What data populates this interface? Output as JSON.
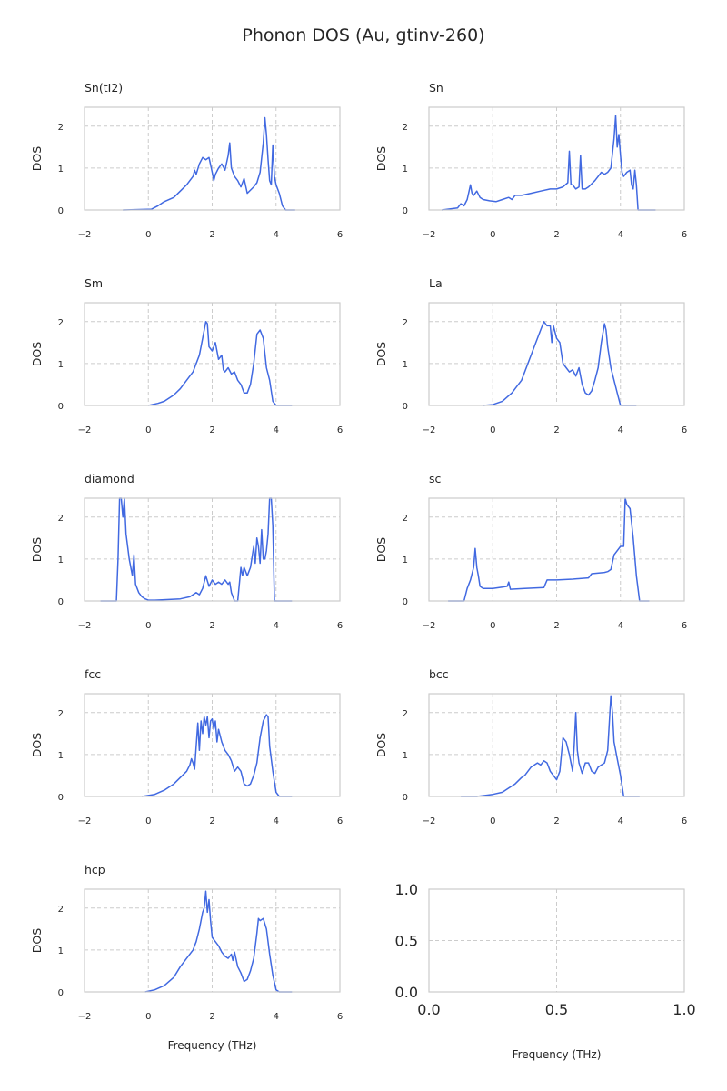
{
  "figure": {
    "title": "Phonon DOS (Au, gtinv-260)"
  },
  "style": {
    "line_color": "#4169e1",
    "grid_color": "#cccccc"
  },
  "chart_data": [
    {
      "type": "line",
      "title": "Sn(tI2)",
      "xlabel": "",
      "ylabel": "DOS",
      "xlim": [
        -2,
        6
      ],
      "ylim": [
        0,
        2.45
      ],
      "xticks": [
        "−2",
        "0",
        "2",
        "4",
        "6"
      ],
      "yticks": [
        "0",
        "1",
        "2"
      ],
      "grid": true,
      "series": [
        {
          "x": [
            -0.8,
            0.1,
            0.3,
            0.5,
            0.8,
            1.0,
            1.2,
            1.4,
            1.45,
            1.5,
            1.6,
            1.7,
            1.8,
            1.9,
            2.0,
            2.05,
            2.1,
            2.2,
            2.3,
            2.4,
            2.5,
            2.55,
            2.6,
            2.7,
            2.8,
            2.9,
            3.0,
            3.1,
            3.3,
            3.4,
            3.5,
            3.6,
            3.65,
            3.7,
            3.75,
            3.8,
            3.85,
            3.9,
            3.95,
            4.0,
            4.1,
            4.2,
            4.3,
            4.6
          ],
          "y": [
            0,
            0.02,
            0.1,
            0.2,
            0.3,
            0.45,
            0.6,
            0.8,
            0.95,
            0.85,
            1.1,
            1.25,
            1.2,
            1.25,
            0.9,
            0.7,
            0.85,
            1.0,
            1.1,
            0.95,
            1.3,
            1.6,
            1.0,
            0.8,
            0.7,
            0.55,
            0.75,
            0.4,
            0.55,
            0.65,
            0.9,
            1.6,
            2.2,
            1.8,
            1.2,
            0.7,
            0.6,
            1.55,
            0.8,
            0.6,
            0.4,
            0.1,
            0,
            0
          ]
        }
      ]
    },
    {
      "type": "line",
      "title": "Sn",
      "xlabel": "",
      "ylabel": "DOS",
      "xlim": [
        -2,
        6
      ],
      "ylim": [
        0,
        2.45
      ],
      "xticks": [
        "−2",
        "0",
        "2",
        "4",
        "6"
      ],
      "yticks": [
        "0",
        "1",
        "2"
      ],
      "grid": true,
      "series": [
        {
          "x": [
            -1.6,
            -1.1,
            -1.0,
            -0.9,
            -0.8,
            -0.7,
            -0.65,
            -0.6,
            -0.5,
            -0.4,
            -0.3,
            -0.1,
            0.1,
            0.3,
            0.5,
            0.6,
            0.7,
            0.9,
            1.2,
            1.5,
            1.8,
            2.0,
            2.2,
            2.35,
            2.4,
            2.45,
            2.5,
            2.6,
            2.7,
            2.75,
            2.8,
            2.9,
            3.0,
            3.2,
            3.3,
            3.4,
            3.5,
            3.6,
            3.7,
            3.8,
            3.85,
            3.9,
            3.95,
            4.0,
            4.05,
            4.1,
            4.2,
            4.3,
            4.35,
            4.4,
            4.45,
            4.5,
            4.55,
            5.1
          ],
          "y": [
            0,
            0.05,
            0.15,
            0.1,
            0.25,
            0.6,
            0.4,
            0.35,
            0.45,
            0.3,
            0.25,
            0.22,
            0.2,
            0.25,
            0.3,
            0.25,
            0.35,
            0.35,
            0.4,
            0.45,
            0.5,
            0.5,
            0.55,
            0.65,
            1.4,
            0.6,
            0.6,
            0.5,
            0.55,
            1.3,
            0.5,
            0.5,
            0.55,
            0.7,
            0.8,
            0.9,
            0.85,
            0.9,
            1.0,
            1.7,
            2.25,
            1.5,
            1.8,
            1.3,
            0.9,
            0.8,
            0.9,
            0.95,
            0.6,
            0.5,
            0.95,
            0.6,
            0,
            0
          ]
        }
      ]
    },
    {
      "type": "line",
      "title": "Sm",
      "xlabel": "",
      "ylabel": "DOS",
      "xlim": [
        -2,
        6
      ],
      "ylim": [
        0,
        2.45
      ],
      "xticks": [
        "−2",
        "0",
        "2",
        "4",
        "6"
      ],
      "yticks": [
        "0",
        "1",
        "2"
      ],
      "grid": true,
      "series": [
        {
          "x": [
            0,
            0.3,
            0.5,
            0.8,
            1.0,
            1.2,
            1.4,
            1.5,
            1.6,
            1.7,
            1.8,
            1.85,
            1.9,
            2.0,
            2.1,
            2.2,
            2.3,
            2.35,
            2.4,
            2.5,
            2.6,
            2.7,
            2.8,
            2.9,
            3.0,
            3.1,
            3.2,
            3.3,
            3.4,
            3.5,
            3.6,
            3.7,
            3.8,
            3.9,
            4.0,
            4.1,
            4.5
          ],
          "y": [
            0,
            0.05,
            0.1,
            0.25,
            0.4,
            0.6,
            0.8,
            1.0,
            1.2,
            1.6,
            2.0,
            1.95,
            1.4,
            1.3,
            1.5,
            1.1,
            1.2,
            0.85,
            0.8,
            0.9,
            0.75,
            0.8,
            0.6,
            0.5,
            0.3,
            0.3,
            0.5,
            1.0,
            1.7,
            1.8,
            1.6,
            0.9,
            0.6,
            0.1,
            0,
            0,
            0
          ]
        }
      ]
    },
    {
      "type": "line",
      "title": "La",
      "xlabel": "",
      "ylabel": "DOS",
      "xlim": [
        -2,
        6
      ],
      "ylim": [
        0,
        2.45
      ],
      "xticks": [
        "−2",
        "0",
        "2",
        "4",
        "6"
      ],
      "yticks": [
        "0",
        "1",
        "2"
      ],
      "grid": true,
      "series": [
        {
          "x": [
            -0.3,
            0,
            0.3,
            0.6,
            0.9,
            1.1,
            1.3,
            1.5,
            1.6,
            1.7,
            1.8,
            1.85,
            1.9,
            2.0,
            2.1,
            2.2,
            2.3,
            2.4,
            2.5,
            2.6,
            2.7,
            2.8,
            2.9,
            3.0,
            3.1,
            3.2,
            3.3,
            3.4,
            3.5,
            3.55,
            3.6,
            3.7,
            3.8,
            3.9,
            4.0,
            4.5
          ],
          "y": [
            0,
            0.02,
            0.1,
            0.3,
            0.6,
            1.0,
            1.4,
            1.8,
            2.0,
            1.9,
            1.9,
            1.5,
            1.9,
            1.6,
            1.5,
            1.0,
            0.9,
            0.8,
            0.85,
            0.7,
            0.9,
            0.5,
            0.3,
            0.25,
            0.35,
            0.6,
            0.9,
            1.5,
            1.95,
            1.8,
            1.4,
            0.9,
            0.6,
            0.3,
            0,
            0
          ]
        }
      ]
    },
    {
      "type": "line",
      "title": "diamond",
      "xlabel": "",
      "ylabel": "DOS",
      "xlim": [
        -2,
        6
      ],
      "ylim": [
        0,
        2.45
      ],
      "xticks": [
        "−2",
        "0",
        "2",
        "4",
        "6"
      ],
      "yticks": [
        "0",
        "1",
        "2"
      ],
      "grid": true,
      "series": [
        {
          "x": [
            -1.5,
            -1.0,
            -0.95,
            -0.9,
            -0.85,
            -0.8,
            -0.75,
            -0.7,
            -0.6,
            -0.5,
            -0.45,
            -0.4,
            -0.3,
            -0.2,
            -0.1,
            0,
            0.2,
            0.5,
            1.0,
            1.3,
            1.5,
            1.6,
            1.7,
            1.8,
            1.9,
            2.0,
            2.1,
            2.2,
            2.3,
            2.4,
            2.5,
            2.55,
            2.6,
            2.7,
            2.8,
            2.9,
            2.95,
            3.0,
            3.05,
            3.1,
            3.2,
            3.3,
            3.35,
            3.4,
            3.45,
            3.5,
            3.55,
            3.6,
            3.65,
            3.7,
            3.75,
            3.8,
            3.85,
            3.9,
            3.95,
            4.0,
            4.5
          ],
          "y": [
            0,
            0,
            1.0,
            2.5,
            2.5,
            2.0,
            2.45,
            1.6,
            1.0,
            0.6,
            1.1,
            0.4,
            0.2,
            0.1,
            0.05,
            0.02,
            0.02,
            0.03,
            0.05,
            0.1,
            0.2,
            0.15,
            0.3,
            0.6,
            0.35,
            0.5,
            0.4,
            0.45,
            0.4,
            0.5,
            0.4,
            0.45,
            0.2,
            0,
            0,
            0.8,
            0.6,
            0.8,
            0.7,
            0.6,
            0.8,
            1.3,
            0.9,
            1.5,
            1.3,
            0.9,
            1.7,
            1.0,
            1.0,
            1.2,
            1.6,
            2.5,
            2.5,
            1.8,
            0,
            0,
            0
          ]
        }
      ]
    },
    {
      "type": "line",
      "title": "sc",
      "xlabel": "",
      "ylabel": "DOS",
      "xlim": [
        -2,
        6
      ],
      "ylim": [
        0,
        2.45
      ],
      "xticks": [
        "−2",
        "0",
        "2",
        "4",
        "6"
      ],
      "yticks": [
        "0",
        "1",
        "2"
      ],
      "grid": true,
      "series": [
        {
          "x": [
            -1.4,
            -0.9,
            -0.8,
            -0.7,
            -0.6,
            -0.55,
            -0.5,
            -0.45,
            -0.4,
            -0.3,
            -0.2,
            0,
            0.3,
            0.45,
            0.5,
            0.55,
            1.0,
            1.6,
            1.7,
            2.0,
            2.5,
            3.0,
            3.1,
            3.5,
            3.6,
            3.7,
            3.8,
            4.0,
            4.1,
            4.15,
            4.2,
            4.3,
            4.4,
            4.5,
            4.6,
            4.9
          ],
          "y": [
            0,
            0,
            0.3,
            0.5,
            0.8,
            1.25,
            0.8,
            0.6,
            0.35,
            0.3,
            0.3,
            0.3,
            0.33,
            0.35,
            0.45,
            0.28,
            0.3,
            0.32,
            0.5,
            0.5,
            0.52,
            0.55,
            0.65,
            0.68,
            0.7,
            0.75,
            1.1,
            1.3,
            1.3,
            2.5,
            2.3,
            2.2,
            1.5,
            0.6,
            0,
            0
          ]
        }
      ]
    },
    {
      "type": "line",
      "title": "fcc",
      "xlabel": "",
      "ylabel": "DOS",
      "xlim": [
        -2,
        6
      ],
      "ylim": [
        0,
        2.45
      ],
      "xticks": [
        "−2",
        "0",
        "2",
        "4",
        "6"
      ],
      "yticks": [
        "0",
        "1",
        "2"
      ],
      "grid": true,
      "series": [
        {
          "x": [
            -0.2,
            0.2,
            0.5,
            0.8,
            1.0,
            1.2,
            1.3,
            1.35,
            1.4,
            1.45,
            1.5,
            1.55,
            1.6,
            1.65,
            1.7,
            1.75,
            1.8,
            1.85,
            1.9,
            1.95,
            2.0,
            2.05,
            2.1,
            2.15,
            2.2,
            2.3,
            2.4,
            2.5,
            2.6,
            2.7,
            2.8,
            2.9,
            3.0,
            3.1,
            3.2,
            3.3,
            3.4,
            3.5,
            3.6,
            3.7,
            3.75,
            3.8,
            3.9,
            4.0,
            4.1,
            4.5
          ],
          "y": [
            0,
            0.05,
            0.15,
            0.3,
            0.45,
            0.6,
            0.75,
            0.9,
            0.8,
            0.65,
            1.2,
            1.75,
            1.1,
            1.8,
            1.5,
            1.9,
            1.7,
            1.9,
            1.4,
            1.8,
            1.85,
            1.6,
            1.8,
            1.3,
            1.6,
            1.3,
            1.1,
            1.0,
            0.85,
            0.6,
            0.7,
            0.6,
            0.3,
            0.25,
            0.3,
            0.5,
            0.8,
            1.4,
            1.8,
            1.95,
            1.9,
            1.2,
            0.6,
            0.1,
            0,
            0
          ]
        }
      ]
    },
    {
      "type": "line",
      "title": "bcc",
      "xlabel": "",
      "ylabel": "DOS",
      "xlim": [
        -2,
        6
      ],
      "ylim": [
        0,
        2.45
      ],
      "xticks": [
        "−2",
        "0",
        "2",
        "4",
        "6"
      ],
      "yticks": [
        "0",
        "1",
        "2"
      ],
      "grid": true,
      "series": [
        {
          "x": [
            -1.0,
            -0.5,
            -0.3,
            0,
            0.3,
            0.5,
            0.7,
            0.9,
            1.0,
            1.1,
            1.2,
            1.4,
            1.5,
            1.6,
            1.7,
            1.8,
            1.9,
            2.0,
            2.1,
            2.2,
            2.3,
            2.4,
            2.5,
            2.55,
            2.6,
            2.65,
            2.7,
            2.8,
            2.9,
            3.0,
            3.1,
            3.2,
            3.3,
            3.4,
            3.5,
            3.6,
            3.7,
            3.75,
            3.8,
            3.9,
            4.0,
            4.1,
            4.6
          ],
          "y": [
            0,
            0,
            0.02,
            0.05,
            0.1,
            0.2,
            0.3,
            0.45,
            0.5,
            0.6,
            0.7,
            0.8,
            0.75,
            0.85,
            0.8,
            0.6,
            0.5,
            0.4,
            0.6,
            1.4,
            1.3,
            1.0,
            0.6,
            1.2,
            2.0,
            1.1,
            0.8,
            0.55,
            0.8,
            0.8,
            0.6,
            0.55,
            0.7,
            0.75,
            0.8,
            1.1,
            2.4,
            2.0,
            1.3,
            0.9,
            0.5,
            0,
            0
          ]
        }
      ]
    },
    {
      "type": "line",
      "title": "hcp",
      "xlabel": "Frequency (THz)",
      "ylabel": "DOS",
      "xlim": [
        -2,
        6
      ],
      "ylim": [
        0,
        2.45
      ],
      "xticks": [
        "−2",
        "0",
        "2",
        "4",
        "6"
      ],
      "yticks": [
        "0",
        "1",
        "2"
      ],
      "grid": true,
      "series": [
        {
          "x": [
            -0.1,
            0.2,
            0.5,
            0.8,
            1.0,
            1.2,
            1.4,
            1.5,
            1.6,
            1.7,
            1.75,
            1.8,
            1.85,
            1.9,
            1.95,
            2.0,
            2.1,
            2.2,
            2.3,
            2.4,
            2.5,
            2.6,
            2.65,
            2.7,
            2.8,
            2.9,
            3.0,
            3.1,
            3.2,
            3.3,
            3.4,
            3.45,
            3.5,
            3.6,
            3.7,
            3.8,
            3.9,
            4.0,
            4.1,
            4.5
          ],
          "y": [
            0,
            0.05,
            0.15,
            0.35,
            0.6,
            0.8,
            1.0,
            1.2,
            1.5,
            1.9,
            2.0,
            2.4,
            1.9,
            2.2,
            1.7,
            1.3,
            1.2,
            1.1,
            0.95,
            0.85,
            0.8,
            0.9,
            0.75,
            0.95,
            0.6,
            0.45,
            0.25,
            0.3,
            0.5,
            0.8,
            1.4,
            1.75,
            1.7,
            1.75,
            1.5,
            0.9,
            0.4,
            0.05,
            0,
            0
          ]
        }
      ]
    },
    {
      "type": "line",
      "title": "",
      "xlabel": "Frequency (THz)",
      "ylabel": "",
      "xlim": [
        0,
        1
      ],
      "ylim": [
        0,
        1
      ],
      "xticks": [
        "0.0",
        "0.5",
        "1.0"
      ],
      "yticks": [
        "0.0",
        "0.5",
        "1.0"
      ],
      "grid": true,
      "series": []
    }
  ]
}
